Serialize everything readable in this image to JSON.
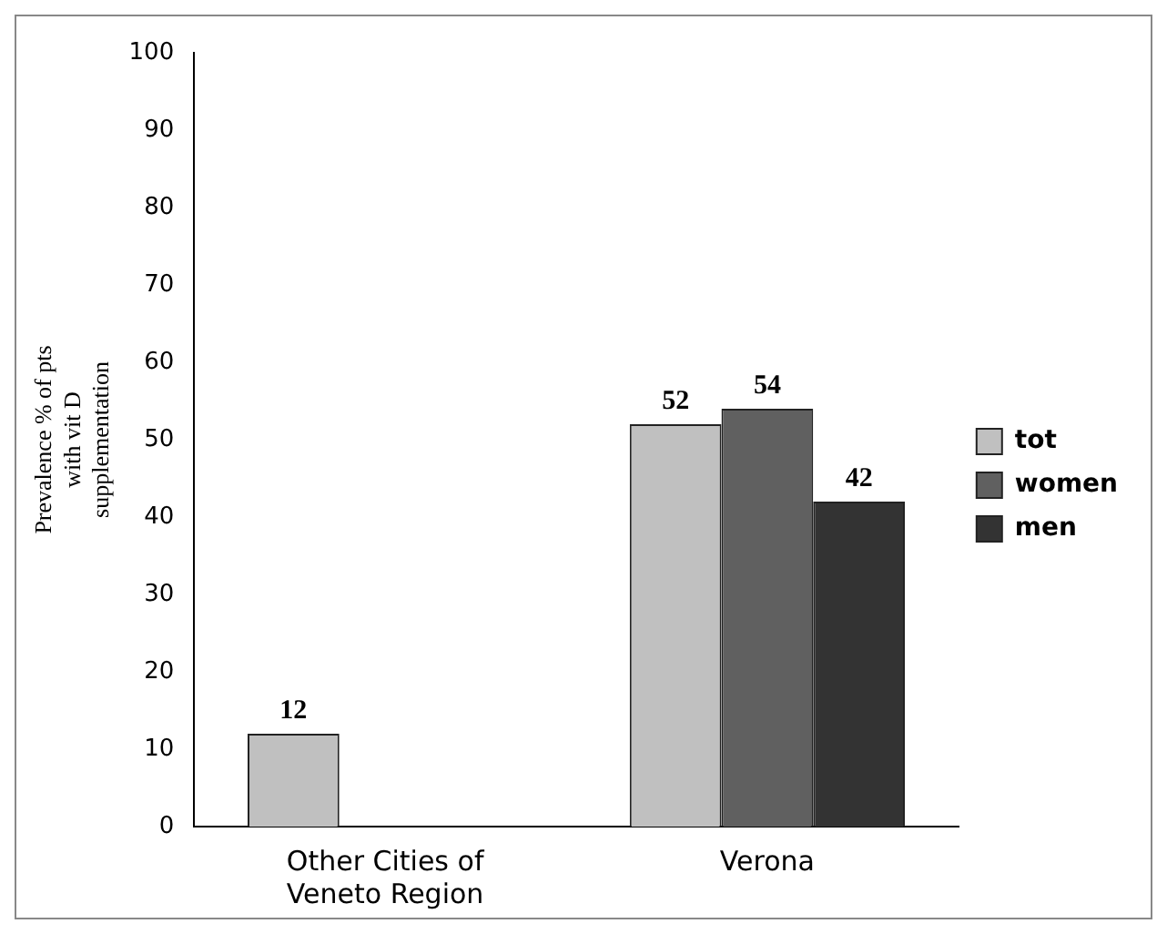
{
  "chart_data": {
    "type": "bar",
    "ylabel": "Prevalence % of pts with vit D supplementation",
    "categories": [
      "Other Cities of Veneto Region",
      "Verona"
    ],
    "series": [
      {
        "name": "tot",
        "color": "#c0c0c0",
        "values": [
          12,
          52
        ]
      },
      {
        "name": "women",
        "color": "#606060",
        "values": [
          null,
          54
        ]
      },
      {
        "name": "men",
        "color": "#333333",
        "values": [
          null,
          42
        ]
      }
    ],
    "ylim": [
      0,
      100
    ],
    "yticks": [
      0,
      10,
      20,
      30,
      40,
      50,
      60,
      70,
      80,
      90,
      100
    ],
    "grid": false,
    "legend": "right",
    "data_labels": true
  }
}
